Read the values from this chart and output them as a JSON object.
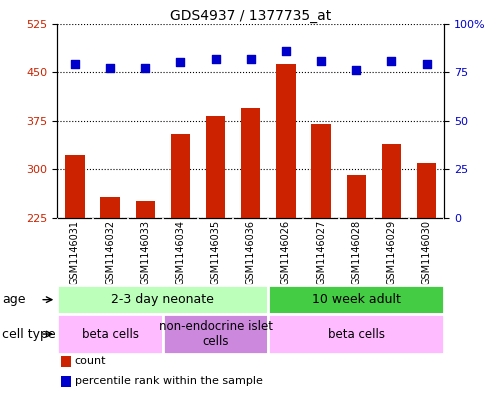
{
  "title": "GDS4937 / 1377735_at",
  "samples": [
    "GSM1146031",
    "GSM1146032",
    "GSM1146033",
    "GSM1146034",
    "GSM1146035",
    "GSM1146036",
    "GSM1146026",
    "GSM1146027",
    "GSM1146028",
    "GSM1146029",
    "GSM1146030"
  ],
  "counts": [
    322,
    258,
    252,
    355,
    383,
    395,
    462,
    370,
    292,
    340,
    310
  ],
  "percentile_ranks": [
    79,
    77,
    77,
    80,
    82,
    82,
    86,
    81,
    76,
    81,
    79
  ],
  "ylim_left": [
    225,
    525
  ],
  "ylim_right": [
    0,
    100
  ],
  "yticks_left": [
    225,
    300,
    375,
    450,
    525
  ],
  "yticks_right": [
    0,
    25,
    50,
    75,
    100
  ],
  "bar_color": "#cc2200",
  "dot_color": "#0000cc",
  "dot_size": 40,
  "bar_width": 0.55,
  "grid_color": "black",
  "plot_bg_color": "white",
  "bg_color": "white",
  "age_groups": [
    {
      "label": "2-3 day neonate",
      "start": 0,
      "end": 6,
      "color": "#bbffbb"
    },
    {
      "label": "10 week adult",
      "start": 6,
      "end": 11,
      "color": "#44cc44"
    }
  ],
  "cell_type_groups": [
    {
      "label": "beta cells",
      "start": 0,
      "end": 3,
      "color": "#ffbbff"
    },
    {
      "label": "non-endocrine islet\ncells",
      "start": 3,
      "end": 6,
      "color": "#cc88dd"
    },
    {
      "label": "beta cells",
      "start": 6,
      "end": 11,
      "color": "#ffbbff"
    }
  ],
  "legend_items": [
    {
      "color": "#cc2200",
      "label": "count"
    },
    {
      "color": "#0000cc",
      "label": "percentile rank within the sample"
    }
  ],
  "tick_label_color_left": "#cc2200",
  "tick_label_color_right": "#0000cc",
  "sample_bg": "#cccccc",
  "tick_fontsize": 8,
  "label_fontsize": 8.5,
  "row_label_fontsize": 9,
  "title_fontsize": 10
}
